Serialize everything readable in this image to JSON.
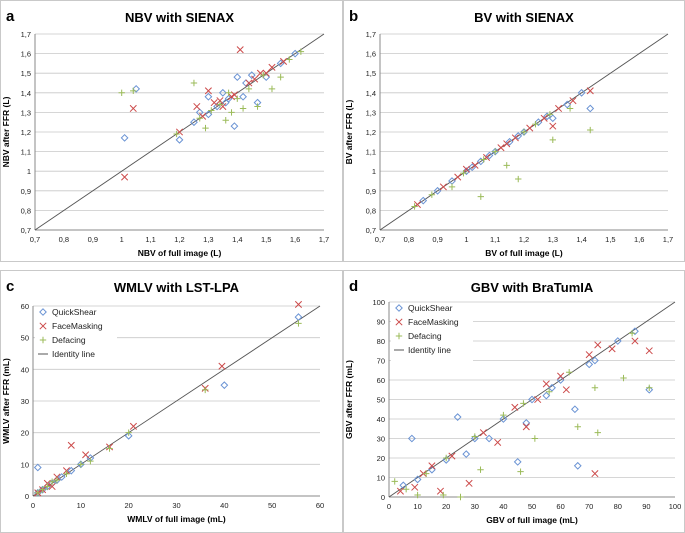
{
  "chart_data": [
    {
      "type": "scatter",
      "panel_letter": "a",
      "title": "NBV with SIENAX",
      "xlabel": "NBV of full image (L)",
      "ylabel": "NBV after FFR (L)",
      "xlim": [
        0.7,
        1.7
      ],
      "ylim": [
        0.7,
        1.7
      ],
      "xticks": [
        "0,7",
        "0,8",
        "0,9",
        "1",
        "1,1",
        "1,2",
        "1,3",
        "1,4",
        "1,5",
        "1,6",
        "1,7"
      ],
      "yticks": [
        "0,7",
        "0,8",
        "0,9",
        "1",
        "1,1",
        "1,2",
        "1,3",
        "1,4",
        "1,5",
        "1,6",
        "1,7"
      ],
      "identity_line": true,
      "series": [
        {
          "name": "QuickShear",
          "marker": "diamond",
          "color": "#6a93d4",
          "points": [
            [
              1.01,
              1.17
            ],
            [
              1.05,
              1.42
            ],
            [
              1.2,
              1.16
            ],
            [
              1.39,
              1.23
            ],
            [
              1.4,
              1.48
            ],
            [
              1.43,
              1.45
            ],
            [
              1.27,
              1.3
            ],
            [
              1.3,
              1.38
            ],
            [
              1.35,
              1.4
            ],
            [
              1.47,
              1.35
            ],
            [
              1.33,
              1.33
            ],
            [
              1.37,
              1.37
            ],
            [
              1.5,
              1.48
            ],
            [
              1.55,
              1.55
            ],
            [
              1.6,
              1.6
            ],
            [
              1.25,
              1.25
            ],
            [
              1.42,
              1.38
            ],
            [
              1.45,
              1.49
            ],
            [
              1.3,
              1.29
            ],
            [
              1.36,
              1.35
            ]
          ]
        },
        {
          "name": "FaceMasking",
          "marker": "x",
          "color": "#cc4a4a",
          "points": [
            [
              1.01,
              0.97
            ],
            [
              1.04,
              1.32
            ],
            [
              1.41,
              1.62
            ],
            [
              1.26,
              1.33
            ],
            [
              1.38,
              1.38
            ],
            [
              1.44,
              1.45
            ],
            [
              1.5,
              1.5
            ],
            [
              1.3,
              1.41
            ],
            [
              1.34,
              1.36
            ],
            [
              1.46,
              1.47
            ],
            [
              1.56,
              1.56
            ],
            [
              1.2,
              1.2
            ],
            [
              1.39,
              1.39
            ],
            [
              1.28,
              1.28
            ],
            [
              1.35,
              1.33
            ],
            [
              1.48,
              1.5
            ],
            [
              1.52,
              1.53
            ],
            [
              1.32,
              1.35
            ]
          ]
        },
        {
          "name": "Defacing",
          "marker": "plus",
          "color": "#9bbb59",
          "points": [
            [
              1.0,
              1.4
            ],
            [
              1.04,
              1.41
            ],
            [
              1.25,
              1.45
            ],
            [
              1.29,
              1.22
            ],
            [
              1.36,
              1.26
            ],
            [
              1.38,
              1.3
            ],
            [
              1.42,
              1.32
            ],
            [
              1.47,
              1.33
            ],
            [
              1.52,
              1.42
            ],
            [
              1.55,
              1.48
            ],
            [
              1.19,
              1.19
            ],
            [
              1.31,
              1.31
            ],
            [
              1.34,
              1.34
            ],
            [
              1.4,
              1.37
            ],
            [
              1.44,
              1.42
            ],
            [
              1.27,
              1.27
            ],
            [
              1.37,
              1.4
            ],
            [
              1.49,
              1.49
            ],
            [
              1.58,
              1.57
            ],
            [
              1.62,
              1.61
            ]
          ]
        }
      ]
    },
    {
      "type": "scatter",
      "panel_letter": "b",
      "title": "BV with SIENAX",
      "xlabel": "BV of full image (L)",
      "ylabel": "BV after FFR (L)",
      "xlim": [
        0.7,
        1.7
      ],
      "ylim": [
        0.7,
        1.7
      ],
      "xticks": [
        "0,7",
        "0,8",
        "0,9",
        "1",
        "1,1",
        "1,2",
        "1,3",
        "1,4",
        "1,5",
        "1,6",
        "1,7"
      ],
      "yticks": [
        "0,7",
        "0,8",
        "0,9",
        "1",
        "1,1",
        "1,2",
        "1,3",
        "1,4",
        "1,5",
        "1,6",
        "1,7"
      ],
      "identity_line": true,
      "series": [
        {
          "name": "QuickShear",
          "marker": "diamond",
          "color": "#6a93d4",
          "points": [
            [
              1.43,
              1.32
            ],
            [
              1.3,
              1.27
            ],
            [
              1.35,
              1.34
            ],
            [
              0.9,
              0.9
            ],
            [
              0.95,
              0.95
            ],
            [
              1.0,
              1.0
            ],
            [
              1.05,
              1.05
            ],
            [
              1.1,
              1.1
            ],
            [
              1.15,
              1.15
            ],
            [
              1.2,
              1.2
            ],
            [
              1.25,
              1.25
            ],
            [
              1.4,
              1.4
            ],
            [
              0.85,
              0.85
            ],
            [
              1.02,
              1.02
            ],
            [
              1.08,
              1.08
            ],
            [
              1.18,
              1.18
            ],
            [
              1.28,
              1.28
            ]
          ]
        },
        {
          "name": "FaceMasking",
          "marker": "x",
          "color": "#cc4a4a",
          "points": [
            [
              1.43,
              1.41
            ],
            [
              1.3,
              1.23
            ],
            [
              0.92,
              0.92
            ],
            [
              0.97,
              0.97
            ],
            [
              1.03,
              1.03
            ],
            [
              1.07,
              1.07
            ],
            [
              1.12,
              1.12
            ],
            [
              1.17,
              1.17
            ],
            [
              1.22,
              1.22
            ],
            [
              1.27,
              1.27
            ],
            [
              1.32,
              1.32
            ],
            [
              1.37,
              1.36
            ],
            [
              0.83,
              0.83
            ],
            [
              1.0,
              1.01
            ],
            [
              1.14,
              1.14
            ]
          ]
        },
        {
          "name": "Defacing",
          "marker": "plus",
          "color": "#9bbb59",
          "points": [
            [
              1.43,
              1.21
            ],
            [
              1.18,
              0.96
            ],
            [
              1.05,
              0.87
            ],
            [
              1.14,
              1.03
            ],
            [
              1.3,
              1.16
            ],
            [
              0.95,
              0.92
            ],
            [
              1.36,
              1.32
            ],
            [
              0.88,
              0.88
            ],
            [
              0.99,
              0.99
            ],
            [
              1.06,
              1.06
            ],
            [
              1.1,
              1.1
            ],
            [
              1.2,
              1.2
            ],
            [
              1.24,
              1.24
            ],
            [
              1.29,
              1.29
            ],
            [
              0.82,
              0.82
            ]
          ]
        }
      ]
    },
    {
      "type": "scatter",
      "panel_letter": "c",
      "title": "WMLV with LST-LPA",
      "xlabel": "WMLV of full image (mL)",
      "ylabel": "WMLV after FFR (mL)",
      "xlim": [
        0,
        60
      ],
      "ylim": [
        0,
        60
      ],
      "xticks": [
        "0",
        "10",
        "20",
        "30",
        "40",
        "50",
        "60"
      ],
      "yticks": [
        "0",
        "10",
        "20",
        "30",
        "40",
        "50",
        "60"
      ],
      "identity_line": true,
      "legend": [
        "QuickShear",
        "FaceMasking",
        "Defacing",
        "Identity line"
      ],
      "series": [
        {
          "name": "QuickShear",
          "marker": "diamond",
          "color": "#6a93d4",
          "points": [
            [
              1,
              9
            ],
            [
              2,
              2
            ],
            [
              3,
              3
            ],
            [
              4,
              4
            ],
            [
              6,
              6
            ],
            [
              8,
              8
            ],
            [
              12,
              12
            ],
            [
              20,
              19
            ],
            [
              40,
              35
            ],
            [
              55.5,
              56.5
            ],
            [
              1,
              1
            ],
            [
              5,
              5
            ],
            [
              10,
              10
            ]
          ]
        },
        {
          "name": "FaceMasking",
          "marker": "x",
          "color": "#cc4a4a",
          "points": [
            [
              8,
              16
            ],
            [
              2,
              2
            ],
            [
              3,
              4
            ],
            [
              5,
              6
            ],
            [
              7,
              8
            ],
            [
              11,
              13
            ],
            [
              21,
              22
            ],
            [
              36,
              34
            ],
            [
              39.5,
              41
            ],
            [
              55.5,
              60.5
            ],
            [
              1,
              1
            ],
            [
              4,
              3
            ],
            [
              16,
              15.5
            ]
          ]
        },
        {
          "name": "Defacing",
          "marker": "plus",
          "color": "#9bbb59",
          "points": [
            [
              1,
              1
            ],
            [
              2,
              2
            ],
            [
              3,
              3
            ],
            [
              5,
              5
            ],
            [
              7,
              7
            ],
            [
              10,
              10
            ],
            [
              16,
              15
            ],
            [
              20,
              20
            ],
            [
              36,
              33.5
            ],
            [
              55.5,
              54.5
            ],
            [
              4,
              4.5
            ],
            [
              12,
              11
            ]
          ]
        }
      ]
    },
    {
      "type": "scatter",
      "panel_letter": "d",
      "title": "GBV with BraTumIA",
      "xlabel": "GBV of full image (mL)",
      "ylabel": "GBV after FFR (mL)",
      "xlim": [
        0,
        100
      ],
      "ylim": [
        0,
        100
      ],
      "xticks": [
        "0",
        "10",
        "20",
        "30",
        "40",
        "50",
        "60",
        "70",
        "80",
        "90",
        "100"
      ],
      "yticks": [
        "0",
        "10",
        "20",
        "30",
        "40",
        "50",
        "60",
        "70",
        "80",
        "90",
        "100"
      ],
      "identity_line": true,
      "legend": [
        "QuickShear",
        "FaceMasking",
        "Defacing",
        "Identity line"
      ],
      "series": [
        {
          "name": "QuickShear",
          "marker": "diamond",
          "color": "#6a93d4",
          "points": [
            [
              8,
              30
            ],
            [
              24,
              41
            ],
            [
              65,
              45
            ],
            [
              66,
              16
            ],
            [
              86,
              85
            ],
            [
              91,
              55
            ],
            [
              72,
              70
            ],
            [
              45,
              18
            ],
            [
              35,
              30
            ],
            [
              50,
              50
            ],
            [
              55,
              52
            ],
            [
              60,
              60
            ],
            [
              40,
              40
            ],
            [
              30,
              30
            ],
            [
              20,
              19
            ],
            [
              15,
              14
            ],
            [
              10,
              9
            ],
            [
              5,
              6
            ],
            [
              70,
              68
            ],
            [
              80,
              80
            ],
            [
              27,
              22
            ],
            [
              48,
              38
            ],
            [
              57,
              56
            ]
          ]
        },
        {
          "name": "FaceMasking",
          "marker": "x",
          "color": "#cc4a4a",
          "points": [
            [
              4,
              3
            ],
            [
              9,
              5
            ],
            [
              12,
              12
            ],
            [
              18,
              3
            ],
            [
              28,
              7
            ],
            [
              38,
              28
            ],
            [
              48,
              36
            ],
            [
              55,
              58
            ],
            [
              62,
              55
            ],
            [
              72,
              12
            ],
            [
              78,
              76
            ],
            [
              86,
              80
            ],
            [
              91,
              75
            ],
            [
              70,
              73
            ],
            [
              52,
              50
            ],
            [
              44,
              46
            ],
            [
              33,
              33
            ],
            [
              22,
              21
            ],
            [
              15,
              16
            ],
            [
              73,
              78
            ],
            [
              60,
              62
            ]
          ]
        },
        {
          "name": "Defacing",
          "marker": "plus",
          "color": "#9bbb59",
          "points": [
            [
              2,
              8
            ],
            [
              6,
              4
            ],
            [
              10,
              1
            ],
            [
              19,
              1
            ],
            [
              25,
              0
            ],
            [
              32,
              14
            ],
            [
              46,
              13
            ],
            [
              51,
              30
            ],
            [
              66,
              36
            ],
            [
              73,
              33
            ],
            [
              82,
              61
            ],
            [
              91,
              56
            ],
            [
              72,
              56
            ],
            [
              56,
              54
            ],
            [
              40,
              42
            ],
            [
              30,
              31
            ],
            [
              20,
              20
            ],
            [
              13,
              12
            ],
            [
              63,
              64
            ],
            [
              85,
              84
            ],
            [
              47,
              48
            ]
          ]
        }
      ]
    }
  ]
}
